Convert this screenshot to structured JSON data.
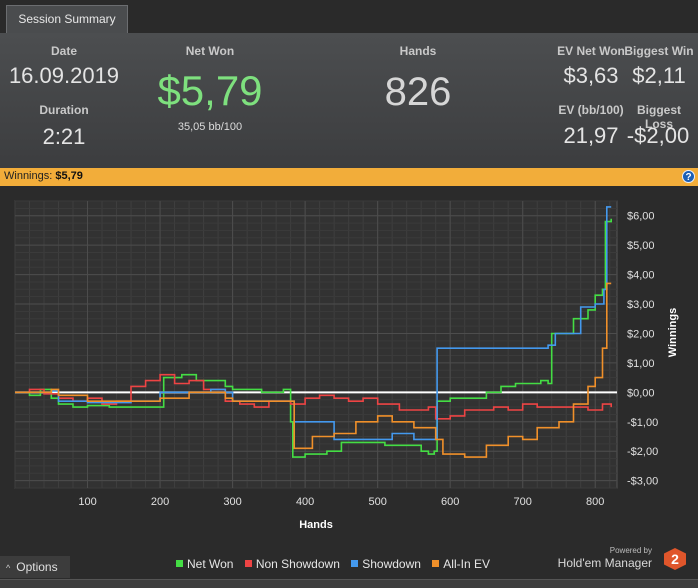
{
  "tab": {
    "label": "Session Summary"
  },
  "summary": {
    "date_label": "Date",
    "date_value": "16.09.2019",
    "duration_label": "Duration",
    "duration_value": "2:21",
    "net_won_label": "Net Won",
    "net_won_value": "$5,79",
    "net_won_sub": "35,05 bb/100",
    "hands_label": "Hands",
    "hands_value": "826",
    "ev_net_won_label": "EV Net Won",
    "ev_net_won_value": "$3,63",
    "biggest_win_label": "Biggest Win",
    "biggest_win_value": "$2,11",
    "ev_bb_label": "EV (bb/100)",
    "ev_bb_value": "21,97",
    "biggest_loss_label": "Biggest Loss",
    "biggest_loss_value": "-$2,00"
  },
  "status": {
    "label": "Winnings:",
    "value": "$5,79",
    "help_icon": "help-icon"
  },
  "options": {
    "label": "Options",
    "icon": "chevron-up-icon"
  },
  "legend": [
    {
      "label": "Net Won",
      "color": "#44dd44"
    },
    {
      "label": "Non Showdown",
      "color": "#ee4444"
    },
    {
      "label": "Showdown",
      "color": "#4499ee"
    },
    {
      "label": "All-In EV",
      "color": "#f0902a"
    }
  ],
  "branding": {
    "powered_by": "Powered by",
    "name": "Hold'em Manager",
    "logo_text": "2"
  },
  "colors": {
    "status_bar": "#f2ad3a",
    "net_won_value": "#7ee07e"
  },
  "chart_data": {
    "type": "line",
    "xlabel": "Hands",
    "ylabel": "Winnings",
    "xlim": [
      0,
      830
    ],
    "ylim": [
      -3.25,
      6.5
    ],
    "xticks": [
      100,
      200,
      300,
      400,
      500,
      600,
      700,
      800
    ],
    "yticks": [
      {
        "v": 6,
        "label": "$6,00"
      },
      {
        "v": 5,
        "label": "$5,00"
      },
      {
        "v": 4,
        "label": "$4,00"
      },
      {
        "v": 3,
        "label": "$3,00"
      },
      {
        "v": 2,
        "label": "$2,00"
      },
      {
        "v": 1,
        "label": "$1,00"
      },
      {
        "v": 0,
        "label": "$0,00"
      },
      {
        "v": -1,
        "label": "-$1,00"
      },
      {
        "v": -2,
        "label": "-$2,00"
      },
      {
        "v": -3,
        "label": "-$3,00"
      }
    ],
    "series": [
      {
        "name": "Net Won",
        "color": "#44dd44",
        "points": [
          [
            0,
            0
          ],
          [
            20,
            -0.1
          ],
          [
            35,
            0.1
          ],
          [
            50,
            -0.2
          ],
          [
            60,
            -0.4
          ],
          [
            80,
            -0.5
          ],
          [
            100,
            -0.45
          ],
          [
            130,
            -0.5
          ],
          [
            160,
            -0.5
          ],
          [
            200,
            -0.5
          ],
          [
            205,
            0.5
          ],
          [
            230,
            0.6
          ],
          [
            250,
            0.4
          ],
          [
            270,
            0.4
          ],
          [
            290,
            0.2
          ],
          [
            300,
            0.1
          ],
          [
            320,
            0.1
          ],
          [
            340,
            0
          ],
          [
            370,
            0.1
          ],
          [
            380,
            -1.0
          ],
          [
            383,
            -2.2
          ],
          [
            400,
            -2.1
          ],
          [
            430,
            -2.0
          ],
          [
            450,
            -1.7
          ],
          [
            480,
            -1.7
          ],
          [
            510,
            -1.8
          ],
          [
            540,
            -1.8
          ],
          [
            560,
            -2.0
          ],
          [
            570,
            -2.1
          ],
          [
            578,
            -2.0
          ],
          [
            582,
            -0.3
          ],
          [
            600,
            -0.2
          ],
          [
            640,
            -0.2
          ],
          [
            650,
            0
          ],
          [
            670,
            0.2
          ],
          [
            690,
            0.3
          ],
          [
            710,
            0.3
          ],
          [
            725,
            0.4
          ],
          [
            735,
            0.3
          ],
          [
            740,
            2.0
          ],
          [
            760,
            2.0
          ],
          [
            770,
            2.5
          ],
          [
            790,
            2.8
          ],
          [
            800,
            3.3
          ],
          [
            810,
            3.5
          ],
          [
            814,
            5.8
          ],
          [
            822,
            5.9
          ]
        ]
      },
      {
        "name": "Non Showdown",
        "color": "#ee4444",
        "points": [
          [
            0,
            0
          ],
          [
            20,
            0.1
          ],
          [
            40,
            -0.05
          ],
          [
            60,
            -0.2
          ],
          [
            80,
            -0.3
          ],
          [
            100,
            -0.2
          ],
          [
            120,
            -0.4
          ],
          [
            140,
            -0.3
          ],
          [
            160,
            0.2
          ],
          [
            180,
            0.4
          ],
          [
            200,
            0.6
          ],
          [
            220,
            0.3
          ],
          [
            240,
            0.4
          ],
          [
            260,
            0.1
          ],
          [
            290,
            -0.3
          ],
          [
            310,
            -0.4
          ],
          [
            330,
            -0.5
          ],
          [
            350,
            -0.3
          ],
          [
            380,
            -0.4
          ],
          [
            400,
            -0.2
          ],
          [
            420,
            -0.1
          ],
          [
            440,
            -0.2
          ],
          [
            460,
            -0.3
          ],
          [
            480,
            -0.2
          ],
          [
            500,
            -0.4
          ],
          [
            530,
            -0.6
          ],
          [
            550,
            -0.6
          ],
          [
            570,
            -0.5
          ],
          [
            580,
            -0.9
          ],
          [
            600,
            -0.8
          ],
          [
            620,
            -0.6
          ],
          [
            640,
            -0.6
          ],
          [
            660,
            -0.5
          ],
          [
            680,
            -0.6
          ],
          [
            700,
            -0.4
          ],
          [
            720,
            -0.5
          ],
          [
            740,
            -0.5
          ],
          [
            760,
            -0.5
          ],
          [
            790,
            -0.6
          ],
          [
            810,
            -0.4
          ],
          [
            822,
            -0.5
          ]
        ]
      },
      {
        "name": "Showdown",
        "color": "#4499ee",
        "points": [
          [
            0,
            0
          ],
          [
            50,
            0.05
          ],
          [
            60,
            -0.3
          ],
          [
            100,
            -0.35
          ],
          [
            140,
            -0.35
          ],
          [
            160,
            -0.3
          ],
          [
            190,
            -0.3
          ],
          [
            200,
            0
          ],
          [
            240,
            0
          ],
          [
            270,
            0.1
          ],
          [
            290,
            0
          ],
          [
            300,
            -0.3
          ],
          [
            380,
            -0.3
          ],
          [
            385,
            -1.0
          ],
          [
            420,
            -1.0
          ],
          [
            440,
            -1.6
          ],
          [
            470,
            -1.6
          ],
          [
            500,
            -1.6
          ],
          [
            520,
            -1.4
          ],
          [
            550,
            -1.6
          ],
          [
            578,
            -1.6
          ],
          [
            582,
            1.5
          ],
          [
            620,
            1.5
          ],
          [
            660,
            1.5
          ],
          [
            700,
            1.5
          ],
          [
            735,
            1.6
          ],
          [
            745,
            2.0
          ],
          [
            760,
            2.0
          ],
          [
            780,
            2.9
          ],
          [
            800,
            3.0
          ],
          [
            812,
            3.5
          ],
          [
            816,
            6.3
          ],
          [
            822,
            6.3
          ]
        ]
      },
      {
        "name": "All-In EV",
        "color": "#f0902a",
        "points": [
          [
            0,
            0
          ],
          [
            50,
            0.1
          ],
          [
            60,
            -0.1
          ],
          [
            100,
            -0.3
          ],
          [
            150,
            -0.3
          ],
          [
            200,
            -0.2
          ],
          [
            240,
            0
          ],
          [
            270,
            0
          ],
          [
            290,
            -0.2
          ],
          [
            300,
            -0.3
          ],
          [
            380,
            -0.3
          ],
          [
            385,
            -1.9
          ],
          [
            410,
            -1.5
          ],
          [
            440,
            -1.4
          ],
          [
            470,
            -1.0
          ],
          [
            500,
            -0.8
          ],
          [
            520,
            -1.0
          ],
          [
            550,
            -1.2
          ],
          [
            580,
            -1.6
          ],
          [
            590,
            -2.1
          ],
          [
            620,
            -2.2
          ],
          [
            650,
            -1.8
          ],
          [
            680,
            -1.5
          ],
          [
            700,
            -1.6
          ],
          [
            720,
            -1.2
          ],
          [
            750,
            -1.0
          ],
          [
            770,
            -0.4
          ],
          [
            790,
            0.2
          ],
          [
            800,
            0.5
          ],
          [
            810,
            1.5
          ],
          [
            816,
            3.7
          ],
          [
            822,
            3.7
          ]
        ]
      }
    ]
  }
}
